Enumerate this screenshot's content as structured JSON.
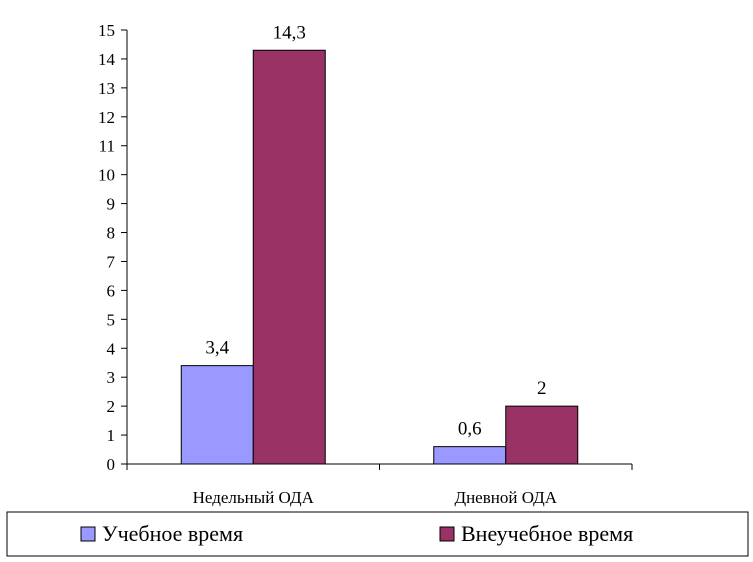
{
  "chart_data": {
    "type": "bar",
    "categories": [
      "Недельный ОДА",
      "Дневной ОДА"
    ],
    "series": [
      {
        "name": "Учебное время",
        "values": [
          3.4,
          0.6
        ],
        "labels": [
          "3,4",
          "0,6"
        ],
        "color": "#9999ff"
      },
      {
        "name": "Внеучебное время",
        "values": [
          14.3,
          2
        ],
        "labels": [
          "14,3",
          "2"
        ],
        "color": "#993366"
      }
    ],
    "yticks": [
      "0",
      "1",
      "2",
      "3",
      "4",
      "5",
      "6",
      "7",
      "8",
      "9",
      "10",
      "11",
      "12",
      "13",
      "14",
      "15"
    ],
    "ylim": [
      0,
      15
    ],
    "grid": false,
    "legend_position": "bottom"
  }
}
